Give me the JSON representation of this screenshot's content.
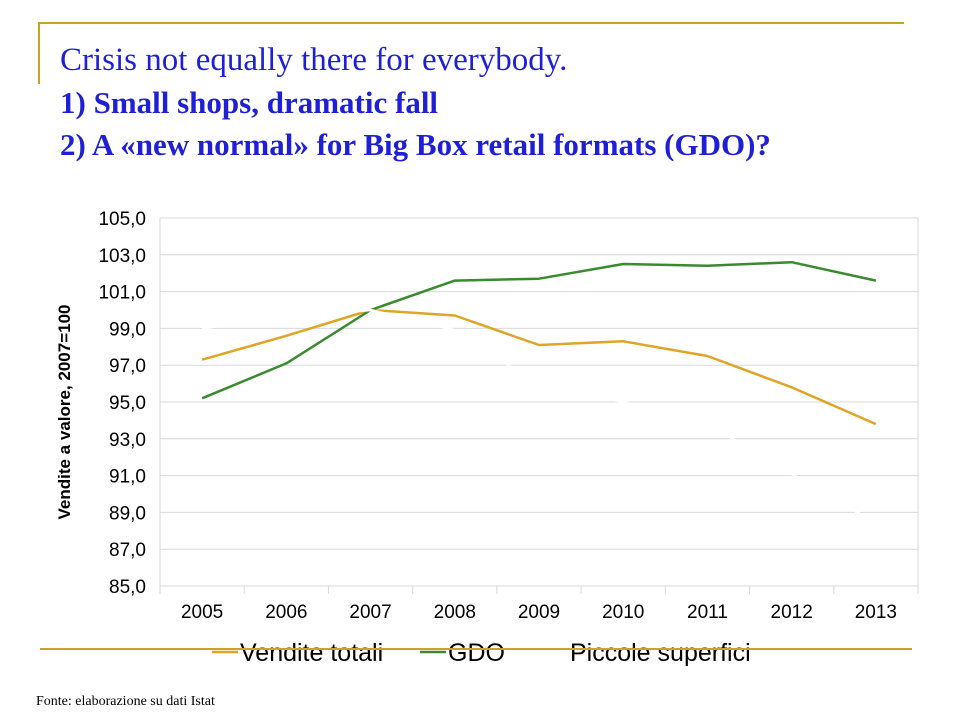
{
  "slide": {
    "title_line1": "Crisis not equally there for everybody.",
    "title_line2": "1) Small shops, dramatic fall",
    "title_line3": "2) A «new normal» for Big Box retail formats (GDO)?",
    "source": "Fonte: elaborazione su dati Istat"
  },
  "chart_data": {
    "type": "line",
    "ylabel": "Vendite a valore, 2007=100",
    "xlabel": "",
    "ylim": [
      85,
      105
    ],
    "yticks": [
      "85,0",
      "87,0",
      "89,0",
      "91,0",
      "93,0",
      "95,0",
      "97,0",
      "99,0",
      "101,0",
      "103,0",
      "105,0"
    ],
    "categories": [
      "2005",
      "2006",
      "2007",
      "2008",
      "2009",
      "2010",
      "2011",
      "2012",
      "2013"
    ],
    "legend_position": "bottom",
    "grid": true,
    "series": [
      {
        "name": "Vendite totali",
        "color": "#dea527",
        "values": [
          97.3,
          98.6,
          100.0,
          99.7,
          98.1,
          98.3,
          97.5,
          95.8,
          93.8
        ]
      },
      {
        "name": "GDO",
        "color": "#3a8a2f",
        "values": [
          95.2,
          97.1,
          100.0,
          101.6,
          101.7,
          102.5,
          102.4,
          102.6,
          101.6
        ]
      },
      {
        "name": "Piccole superfici",
        "color": "#ffffff",
        "values": [
          99.0,
          99.6,
          100.0,
          98.9,
          95.9,
          95.0,
          93.8,
          91.1,
          88.4
        ]
      }
    ]
  }
}
